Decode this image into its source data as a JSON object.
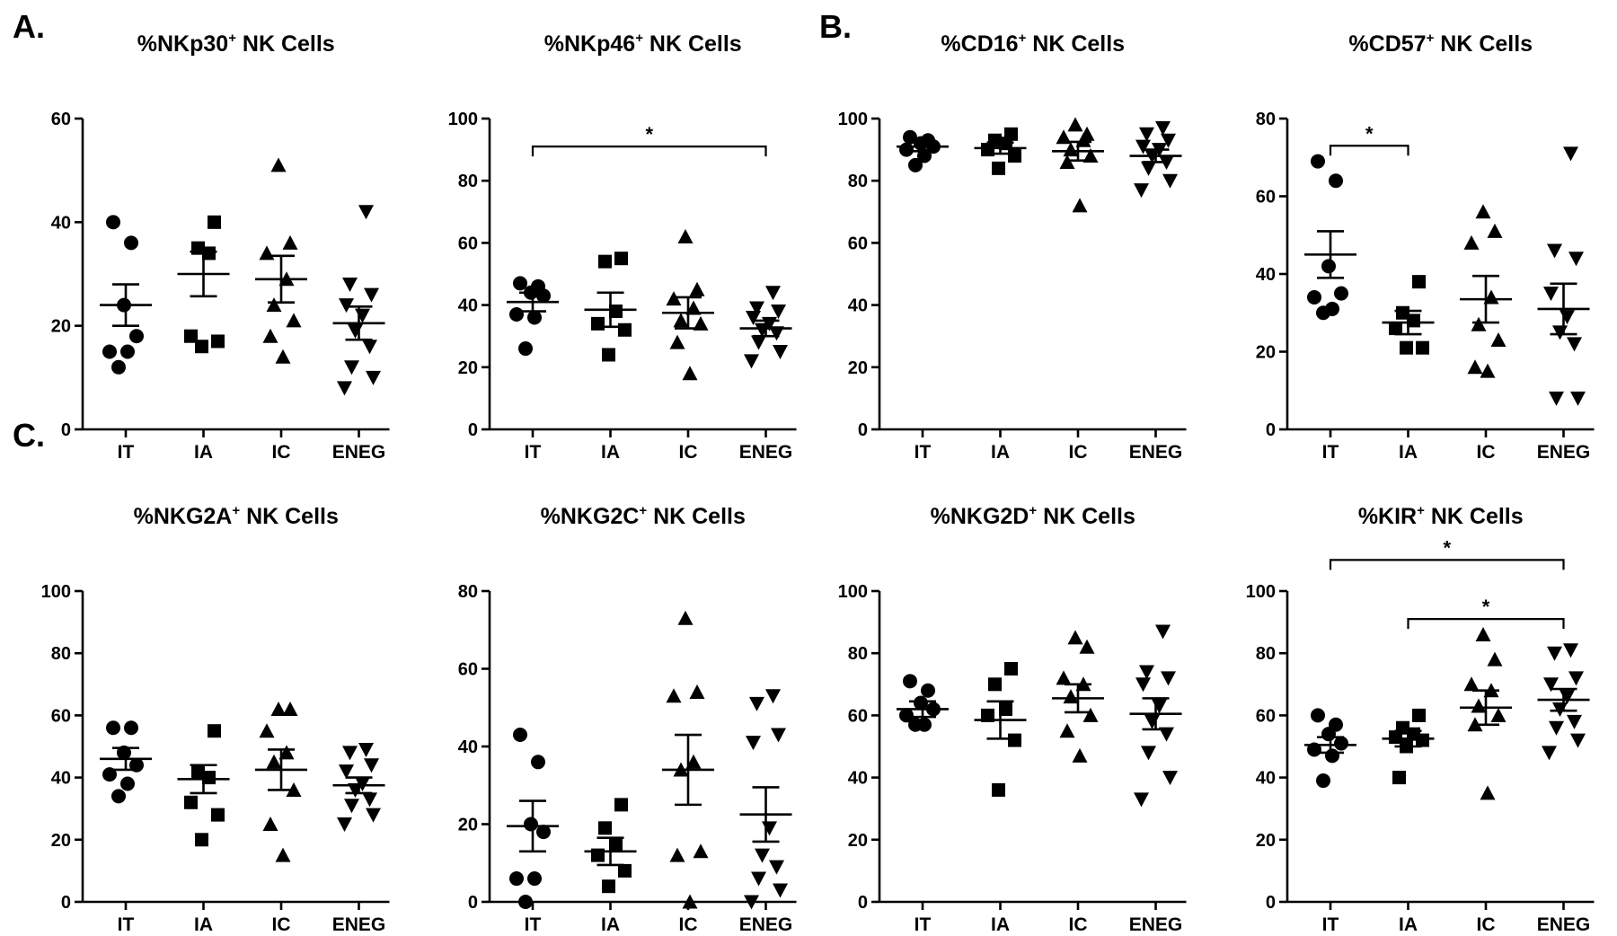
{
  "panel_labels": [
    {
      "text": "A."
    },
    {
      "text": "B."
    },
    {
      "text": "C."
    }
  ],
  "colors": {
    "marker": "#000000",
    "axis": "#000000",
    "background": "#ffffff"
  },
  "chart_data": [
    {
      "type": "scatter",
      "title": {
        "pre": "%NKp30",
        "sup": "+",
        "post": " NK Cells"
      },
      "categories": [
        "IT",
        "IA",
        "IC",
        "ENEG"
      ],
      "ylim": [
        0,
        60
      ],
      "yticks": [
        0,
        20,
        40,
        60
      ],
      "markers": [
        "circle",
        "square",
        "triangle-up",
        "triangle-down"
      ],
      "points": [
        [
          40,
          36,
          24,
          18,
          15,
          15,
          12
        ],
        [
          40,
          35,
          34,
          18,
          17,
          16
        ],
        [
          51,
          36,
          34,
          29,
          24,
          21,
          18,
          14
        ],
        [
          42,
          28,
          26,
          24,
          22,
          19,
          16,
          12,
          10,
          8
        ]
      ],
      "mean": [
        24,
        30,
        29,
        20.5
      ],
      "sem": [
        4,
        4.3,
        4.5,
        3.2
      ],
      "sig": []
    },
    {
      "type": "scatter",
      "title": {
        "pre": "%NKp46",
        "sup": "+",
        "post": " NK Cells"
      },
      "categories": [
        "IT",
        "IA",
        "IC",
        "ENEG"
      ],
      "ylim": [
        0,
        100
      ],
      "yticks": [
        0,
        20,
        40,
        60,
        80,
        100
      ],
      "markers": [
        "circle",
        "square",
        "triangle-up",
        "triangle-down"
      ],
      "points": [
        [
          47,
          46,
          44,
          43,
          37,
          36,
          26
        ],
        [
          55,
          54,
          38,
          34,
          32,
          24
        ],
        [
          62,
          45,
          42,
          39,
          35,
          34,
          28,
          18
        ],
        [
          44,
          39,
          38,
          36,
          34,
          32,
          31,
          28,
          25,
          22
        ]
      ],
      "mean": [
        41,
        38.5,
        37.5,
        32.5
      ],
      "sem": [
        3,
        5.5,
        5,
        2.5
      ],
      "sig": [
        {
          "from": 0,
          "to": 3,
          "y": 91,
          "label": "*"
        }
      ]
    },
    {
      "type": "scatter",
      "title": {
        "pre": "%CD16",
        "sup": "+",
        "post": " NK Cells"
      },
      "categories": [
        "IT",
        "IA",
        "IC",
        "ENEG"
      ],
      "ylim": [
        0,
        100
      ],
      "yticks": [
        0,
        20,
        40,
        60,
        80,
        100
      ],
      "markers": [
        "circle",
        "square",
        "triangle-up",
        "triangle-down"
      ],
      "points": [
        [
          94,
          93,
          92,
          91,
          90,
          88,
          85
        ],
        [
          95,
          93,
          92,
          90,
          88,
          84
        ],
        [
          98,
          95,
          94,
          93,
          90,
          88,
          86,
          72
        ],
        [
          97,
          95,
          93,
          91,
          90,
          88,
          86,
          84,
          80,
          77
        ]
      ],
      "mean": [
        91,
        90.5,
        89.5,
        88
      ],
      "sem": [
        1.5,
        1.8,
        3,
        2
      ],
      "sig": []
    },
    {
      "type": "scatter",
      "title": {
        "pre": "%CD57",
        "sup": "+",
        "post": " NK Cells"
      },
      "categories": [
        "IT",
        "IA",
        "IC",
        "ENEG"
      ],
      "ylim": [
        0,
        80
      ],
      "yticks": [
        0,
        20,
        40,
        60,
        80
      ],
      "markers": [
        "circle",
        "square",
        "triangle-up",
        "triangle-down"
      ],
      "points": [
        [
          69,
          64,
          42,
          35,
          34,
          31,
          30
        ],
        [
          38,
          30,
          28,
          26,
          21,
          21
        ],
        [
          56,
          51,
          48,
          34,
          27,
          23,
          16,
          15
        ],
        [
          71,
          46,
          44,
          35,
          29,
          25,
          22,
          8,
          8
        ]
      ],
      "mean": [
        45,
        27.5,
        33.5,
        31
      ],
      "sem": [
        6,
        3,
        6,
        6.5
      ],
      "sig": [
        {
          "from": 0,
          "to": 1,
          "y": 73,
          "label": "*"
        }
      ]
    },
    {
      "type": "scatter",
      "title": {
        "pre": "%NKG2A",
        "sup": "+",
        "post": " NK Cells"
      },
      "categories": [
        "IT",
        "IA",
        "IC",
        "ENEG"
      ],
      "ylim": [
        0,
        100
      ],
      "yticks": [
        0,
        20,
        40,
        60,
        80,
        100
      ],
      "markers": [
        "circle",
        "square",
        "triangle-up",
        "triangle-down"
      ],
      "points": [
        [
          56,
          56,
          48,
          44,
          41,
          38,
          34
        ],
        [
          55,
          42,
          40,
          32,
          28,
          20
        ],
        [
          62,
          62,
          55,
          48,
          45,
          36,
          25,
          15
        ],
        [
          49,
          48,
          44,
          42,
          38,
          36,
          33,
          31,
          28,
          25
        ]
      ],
      "mean": [
        46,
        39.5,
        42.5,
        37.5
      ],
      "sem": [
        3.5,
        4.5,
        6.5,
        2.5
      ],
      "sig": []
    },
    {
      "type": "scatter",
      "title": {
        "pre": "%NKG2C",
        "sup": "+",
        "post": " NK Cells"
      },
      "categories": [
        "IT",
        "IA",
        "IC",
        "ENEG"
      ],
      "ylim": [
        0,
        80
      ],
      "yticks": [
        0,
        20,
        40,
        60,
        80
      ],
      "markers": [
        "circle",
        "square",
        "triangle-up",
        "triangle-down"
      ],
      "points": [
        [
          43,
          36,
          20,
          18,
          6,
          6,
          0
        ],
        [
          25,
          19,
          15,
          12,
          8,
          4
        ],
        [
          73,
          54,
          53,
          36,
          34,
          13,
          12,
          0
        ],
        [
          53,
          51,
          43,
          41,
          19,
          12,
          9,
          6,
          3,
          0
        ]
      ],
      "mean": [
        19.5,
        13,
        34,
        22.5
      ],
      "sem": [
        6.5,
        3.5,
        9,
        7
      ],
      "sig": []
    },
    {
      "type": "scatter",
      "title": {
        "pre": "%NKG2D",
        "sup": "+",
        "post": " NK Cells"
      },
      "categories": [
        "IT",
        "IA",
        "IC",
        "ENEG"
      ],
      "ylim": [
        0,
        100
      ],
      "yticks": [
        0,
        20,
        40,
        60,
        80,
        100
      ],
      "markers": [
        "circle",
        "square",
        "triangle-up",
        "triangle-down"
      ],
      "points": [
        [
          71,
          68,
          64,
          62,
          60,
          57,
          57
        ],
        [
          75,
          70,
          62,
          60,
          52,
          36
        ],
        [
          85,
          82,
          72,
          70,
          66,
          60,
          55,
          47
        ],
        [
          87,
          74,
          72,
          70,
          63,
          58,
          54,
          48,
          40,
          33
        ]
      ],
      "mean": [
        62,
        58.5,
        65.5,
        60.5
      ],
      "sem": [
        2.5,
        6,
        4.5,
        5
      ],
      "sig": []
    },
    {
      "type": "scatter",
      "title": {
        "pre": "%KIR",
        "sup": "+",
        "post": " NK Cells"
      },
      "categories": [
        "IT",
        "IA",
        "IC",
        "ENEG"
      ],
      "ylim": [
        0,
        100
      ],
      "yticks": [
        0,
        20,
        40,
        60,
        80,
        100
      ],
      "markers": [
        "circle",
        "square",
        "triangle-up",
        "triangle-down"
      ],
      "points": [
        [
          60,
          57,
          54,
          51,
          49,
          47,
          39
        ],
        [
          60,
          56,
          54,
          53,
          52,
          50,
          40
        ],
        [
          86,
          78,
          70,
          68,
          63,
          60,
          57,
          35
        ],
        [
          81,
          80,
          72,
          70,
          66,
          62,
          58,
          56,
          52,
          48
        ]
      ],
      "mean": [
        50.5,
        52.5,
        62.5,
        65
      ],
      "sem": [
        2.5,
        2.5,
        5.5,
        3.5
      ],
      "sig": [
        {
          "from": 0,
          "to": 3,
          "y": 110,
          "label": "*"
        },
        {
          "from": 1,
          "to": 3,
          "y": 91,
          "label": "*"
        }
      ]
    }
  ]
}
